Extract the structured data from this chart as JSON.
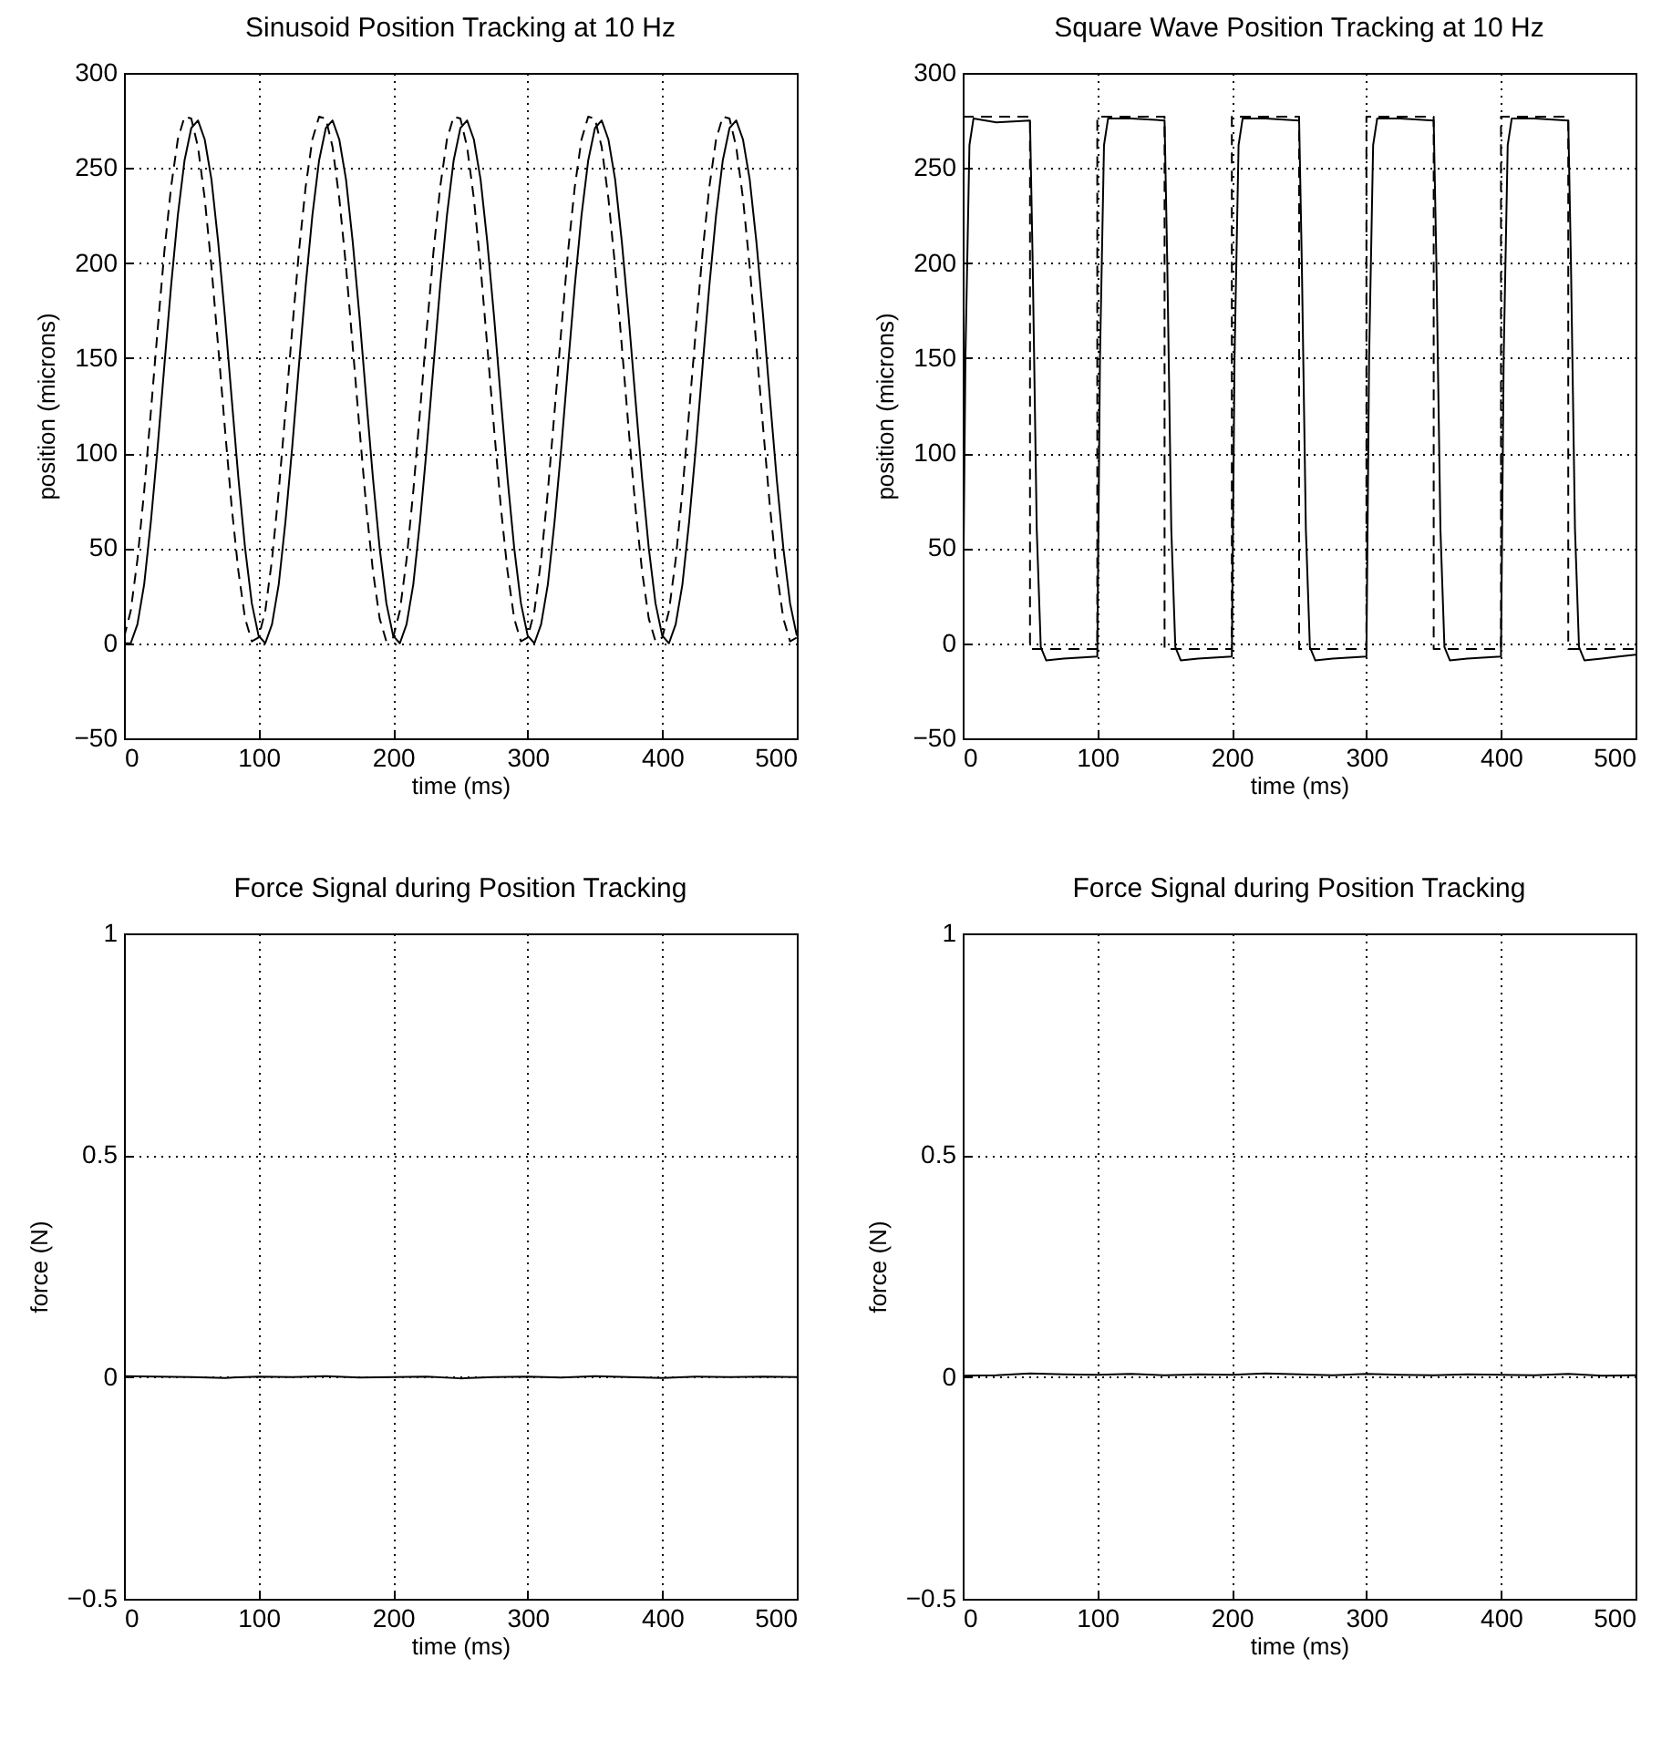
{
  "chart_data": [
    {
      "type": "line",
      "title": "Sinusoid Position Tracking at 10 Hz",
      "xlabel": "time (ms)",
      "ylabel": "position (microns)",
      "xlim": [
        0,
        500
      ],
      "xticks": [
        0,
        100,
        200,
        300,
        400,
        500
      ],
      "ylim": [
        -50,
        300
      ],
      "yticks": [
        -50,
        0,
        50,
        100,
        150,
        200,
        250,
        300
      ],
      "grid": true,
      "legend": false,
      "x": [
        0,
        5,
        10,
        15,
        20,
        25,
        30,
        35,
        40,
        45,
        50,
        55,
        60,
        65,
        70,
        75,
        80,
        85,
        90,
        95,
        100,
        105,
        110,
        115,
        120,
        125,
        130,
        135,
        140,
        145,
        150,
        155,
        160,
        165,
        170,
        175,
        180,
        185,
        190,
        195,
        200,
        205,
        210,
        215,
        220,
        225,
        230,
        235,
        240,
        245,
        250,
        255,
        260,
        265,
        270,
        275,
        280,
        285,
        290,
        295,
        300,
        305,
        310,
        315,
        320,
        325,
        330,
        335,
        340,
        345,
        350,
        355,
        360,
        365,
        370,
        375,
        380,
        385,
        390,
        395,
        400,
        405,
        410,
        415,
        420,
        425,
        430,
        435,
        440,
        445,
        450,
        455,
        460,
        465,
        470,
        475,
        480,
        485,
        490,
        495,
        500
      ],
      "series": [
        {
          "color": "#000000",
          "line_style": "dashed",
          "values": [
            3,
            17,
            44,
            80,
            122,
            165,
            206,
            240,
            265,
            277,
            276,
            261,
            234,
            198,
            156,
            113,
            72,
            38,
            13,
            1,
            3,
            17,
            44,
            80,
            122,
            165,
            206,
            240,
            265,
            277,
            276,
            261,
            234,
            198,
            156,
            113,
            72,
            38,
            13,
            1,
            3,
            17,
            44,
            80,
            122,
            165,
            206,
            240,
            265,
            277,
            276,
            261,
            234,
            198,
            156,
            113,
            72,
            38,
            13,
            1,
            3,
            17,
            44,
            80,
            122,
            165,
            206,
            240,
            265,
            277,
            276,
            261,
            234,
            198,
            156,
            113,
            72,
            38,
            13,
            1,
            3,
            17,
            44,
            80,
            122,
            165,
            206,
            240,
            265,
            277,
            276,
            261,
            234,
            198,
            156,
            113,
            72,
            38,
            13,
            1,
            3
          ]
        },
        {
          "color": "#000000",
          "line_style": "solid",
          "values": [
            0,
            0,
            10,
            31,
            64,
            103,
            146,
            188,
            225,
            254,
            271,
            275,
            265,
            244,
            211,
            172,
            129,
            87,
            50,
            21,
            4,
            0,
            10,
            31,
            64,
            103,
            146,
            188,
            225,
            254,
            271,
            275,
            265,
            244,
            211,
            172,
            129,
            87,
            50,
            21,
            4,
            0,
            10,
            31,
            64,
            103,
            146,
            188,
            225,
            254,
            271,
            275,
            265,
            244,
            211,
            172,
            129,
            87,
            50,
            21,
            4,
            0,
            10,
            31,
            64,
            103,
            146,
            188,
            225,
            254,
            271,
            275,
            265,
            244,
            211,
            172,
            129,
            87,
            50,
            21,
            4,
            0,
            10,
            31,
            64,
            103,
            146,
            188,
            225,
            254,
            271,
            275,
            265,
            244,
            211,
            172,
            129,
            87,
            50,
            21,
            4
          ]
        }
      ]
    },
    {
      "type": "line",
      "title": "Square Wave Position Tracking at 10 Hz",
      "xlabel": "time (ms)",
      "ylabel": "position (microns)",
      "xlim": [
        0,
        500
      ],
      "xticks": [
        0,
        100,
        200,
        300,
        400,
        500
      ],
      "ylim": [
        -50,
        300
      ],
      "yticks": [
        -50,
        0,
        50,
        100,
        150,
        200,
        250,
        300
      ],
      "grid": true,
      "legend": false,
      "series": [
        {
          "type": "step",
          "color": "#000000",
          "line_style": "dashed",
          "x": [
            0,
            50,
            100,
            150,
            200,
            250,
            300,
            350,
            400,
            450,
            500
          ],
          "values": [
            277,
            -3,
            277,
            -3,
            277,
            -3,
            277,
            -3,
            277,
            -3,
            -3
          ]
        },
        {
          "color": "#000000",
          "line_style": "solid",
          "x": [
            0,
            2,
            5,
            8,
            25,
            50,
            52,
            55,
            58,
            62,
            75,
            100,
            102,
            105,
            108,
            125,
            150,
            152,
            155,
            158,
            162,
            175,
            200,
            202,
            205,
            208,
            225,
            250,
            252,
            255,
            258,
            262,
            275,
            300,
            302,
            305,
            308,
            325,
            350,
            352,
            355,
            358,
            362,
            375,
            400,
            402,
            405,
            408,
            425,
            450,
            452,
            455,
            458,
            462,
            475,
            500
          ],
          "values": [
            0,
            150,
            262,
            276,
            274,
            275,
            200,
            60,
            -2,
            -9,
            -8,
            -7,
            150,
            262,
            276,
            276,
            275,
            200,
            60,
            -2,
            -9,
            -8,
            -7,
            150,
            262,
            276,
            276,
            275,
            200,
            60,
            -2,
            -9,
            -8,
            -7,
            150,
            262,
            276,
            276,
            275,
            200,
            60,
            -2,
            -9,
            -8,
            -7,
            150,
            262,
            276,
            276,
            275,
            200,
            60,
            -2,
            -9,
            -8,
            -6
          ]
        }
      ]
    },
    {
      "type": "line",
      "title": "Force Signal during Position Tracking",
      "xlabel": "time (ms)",
      "ylabel": "force (N)",
      "xlim": [
        0,
        500
      ],
      "xticks": [
        0,
        100,
        200,
        300,
        400,
        500
      ],
      "ylim": [
        -0.5,
        1
      ],
      "yticks": [
        -0.5,
        0,
        0.5,
        1
      ],
      "grid": true,
      "legend": false,
      "x": [
        0,
        25,
        50,
        75,
        100,
        125,
        150,
        175,
        200,
        225,
        250,
        275,
        300,
        325,
        350,
        375,
        400,
        425,
        450,
        475,
        500
      ],
      "series": [
        {
          "color": "#000000",
          "line_style": "solid",
          "values": [
            0.002,
            0.001,
            0,
            -0.002,
            0.001,
            0,
            0.002,
            -0.001,
            0,
            0.001,
            -0.003,
            0,
            0.001,
            -0.001,
            0.002,
            0,
            -0.002,
            0.001,
            0,
            0.001,
            0
          ]
        }
      ]
    },
    {
      "type": "line",
      "title": "Force Signal during Position Tracking",
      "xlabel": "time (ms)",
      "ylabel": "force (N)",
      "xlim": [
        0,
        500
      ],
      "xticks": [
        0,
        100,
        200,
        300,
        400,
        500
      ],
      "ylim": [
        -0.5,
        1
      ],
      "yticks": [
        -0.5,
        0,
        0.5,
        1
      ],
      "grid": true,
      "legend": false,
      "x": [
        0,
        25,
        50,
        75,
        100,
        125,
        150,
        175,
        200,
        225,
        250,
        275,
        300,
        325,
        350,
        375,
        400,
        425,
        450,
        475,
        500
      ],
      "series": [
        {
          "color": "#000000",
          "line_style": "solid",
          "values": [
            0.003,
            0.004,
            0.008,
            0.006,
            0.005,
            0.007,
            0.004,
            0.006,
            0.005,
            0.008,
            0.006,
            0.004,
            0.007,
            0.005,
            0.004,
            0.006,
            0.005,
            0.004,
            0.007,
            0.003,
            0.004
          ]
        }
      ]
    }
  ]
}
